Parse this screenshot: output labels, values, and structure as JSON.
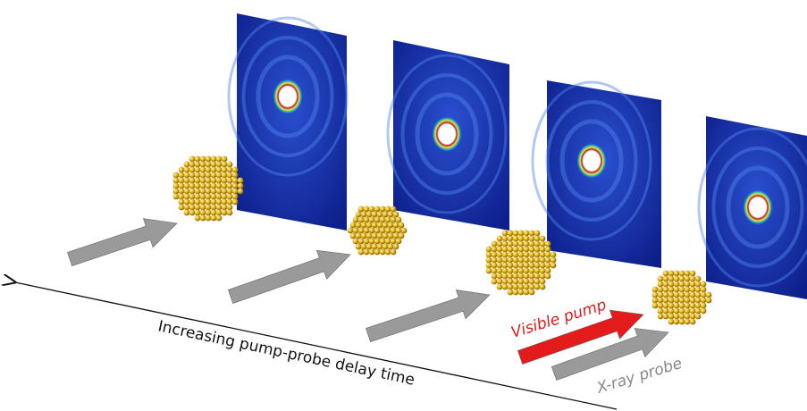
{
  "labels": {
    "time_axis": "Increasing pump-probe delay time",
    "pump": "Visible pump",
    "probe": "X-ray probe"
  }
}
